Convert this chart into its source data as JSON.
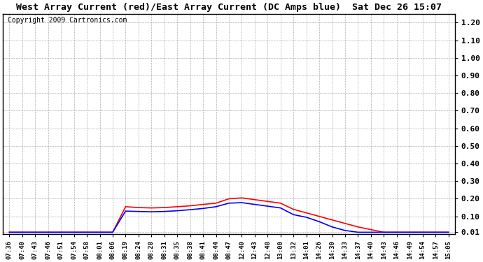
{
  "title": "West Array Current (red)/East Array Current (DC Amps blue)  Sat Dec 26 15:07",
  "copyright": "Copyright 2009 Cartronics.com",
  "background_color": "#ffffff",
  "plot_bg_color": "#ffffff",
  "grid_color": "#aaaaaa",
  "x_labels": [
    "07:36",
    "07:40",
    "07:43",
    "07:46",
    "07:51",
    "07:54",
    "07:58",
    "08:01",
    "08:06",
    "08:19",
    "08:24",
    "08:28",
    "08:31",
    "08:35",
    "08:38",
    "08:41",
    "08:44",
    "08:47",
    "12:40",
    "12:43",
    "12:48",
    "13:00",
    "13:32",
    "14:01",
    "14:26",
    "14:30",
    "14:33",
    "14:37",
    "14:40",
    "14:43",
    "14:46",
    "14:49",
    "14:54",
    "14:57",
    "15:05"
  ],
  "red_values": [
    0.01,
    0.01,
    0.01,
    0.01,
    0.01,
    0.01,
    0.01,
    0.01,
    0.01,
    0.155,
    0.15,
    0.148,
    0.15,
    0.155,
    0.16,
    0.168,
    0.175,
    0.2,
    0.205,
    0.195,
    0.185,
    0.175,
    0.14,
    0.12,
    0.1,
    0.08,
    0.06,
    0.04,
    0.025,
    0.01,
    0.01,
    0.01,
    0.01,
    0.01,
    0.01
  ],
  "blue_values": [
    0.01,
    0.01,
    0.01,
    0.01,
    0.01,
    0.01,
    0.01,
    0.01,
    0.01,
    0.13,
    0.128,
    0.126,
    0.128,
    0.132,
    0.138,
    0.145,
    0.155,
    0.175,
    0.178,
    0.168,
    0.158,
    0.148,
    0.11,
    0.095,
    0.07,
    0.04,
    0.02,
    0.01,
    0.01,
    0.01,
    0.01,
    0.01,
    0.01,
    0.01,
    0.01
  ],
  "y_ticks": [
    0.01,
    0.1,
    0.2,
    0.3,
    0.4,
    0.5,
    0.6,
    0.7,
    0.8,
    0.9,
    1.0,
    1.1,
    1.2
  ],
  "y_tick_labels": [
    "0.01",
    "0.10",
    "0.20",
    "0.30",
    "0.40",
    "0.50",
    "0.60",
    "0.70",
    "0.80",
    "0.90",
    "1.00",
    "1.10",
    "1.20"
  ],
  "ylim_min": 0.0,
  "ylim_max": 1.25,
  "red_color": "#ff0000",
  "blue_color": "#0000ff",
  "line_width": 1.2
}
